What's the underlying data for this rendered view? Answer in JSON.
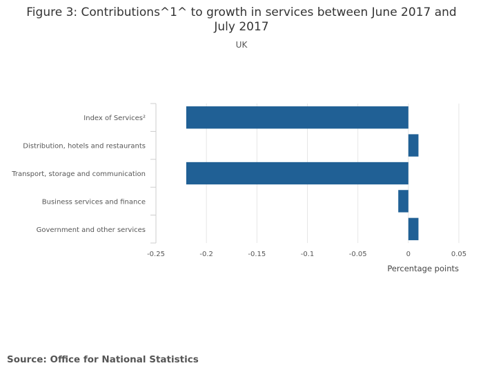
{
  "chart_data": {
    "type": "bar",
    "orientation": "horizontal",
    "title_lines": [
      "Figure 3: Contributions^1^ to growth in services between June 2017 and",
      "July 2017"
    ],
    "subtitle": "UK",
    "categories": [
      "Index of Services²",
      "Distribution, hotels and restaurants",
      "Transport, storage and communication",
      "Business services and finance",
      "Government and other services"
    ],
    "values": [
      -0.22,
      0.01,
      -0.22,
      -0.01,
      0.01
    ],
    "xlabel": "Percentage points",
    "ylabel": "",
    "xlim": [
      -0.25,
      0.05
    ],
    "xticks": [
      -0.25,
      -0.2,
      -0.15,
      -0.1,
      -0.05,
      0,
      0.05
    ],
    "xtick_labels": [
      "-0.25",
      "-0.2",
      "-0.15",
      "-0.1",
      "-0.05",
      "0",
      "0.05"
    ],
    "grid": true,
    "bar_color": "#206095"
  },
  "source": "Source: Office for National Statistics"
}
